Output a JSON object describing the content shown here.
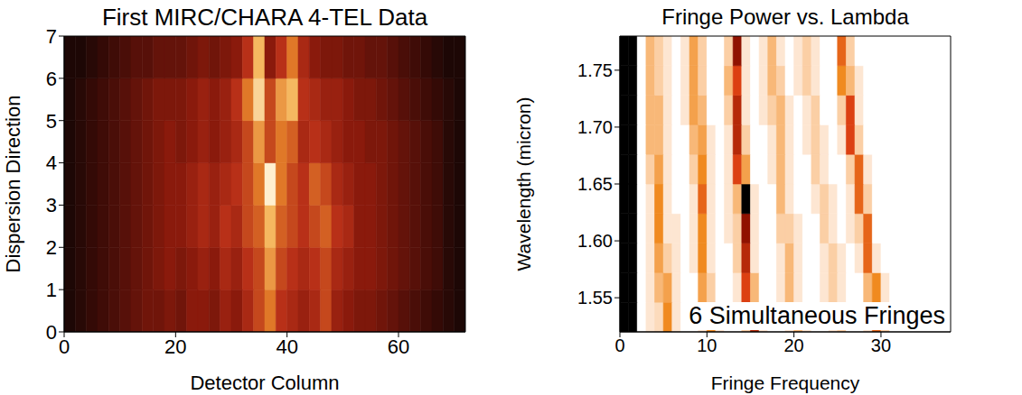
{
  "chart_data": [
    {
      "type": "heatmap",
      "title": "First MIRC/CHARA 4-TEL Data",
      "x_label": "Detector Column",
      "y_label": "Dispersion Direction",
      "xlim": [
        0,
        72
      ],
      "ylim": [
        0,
        7
      ],
      "xticks": [
        0,
        20,
        40,
        60
      ],
      "yticks": [
        0,
        1,
        2,
        3,
        4,
        5,
        6,
        7
      ],
      "color_range": [
        0,
        10
      ],
      "x_bins": [
        0,
        2,
        4,
        6,
        8,
        10,
        12,
        14,
        16,
        18,
        20,
        22,
        24,
        26,
        28,
        30,
        32,
        34,
        36,
        38,
        40,
        42,
        44,
        46,
        48,
        50,
        52,
        54,
        56,
        58,
        60,
        62,
        64,
        66,
        68,
        70,
        72
      ],
      "y_bins": [
        0,
        1,
        2,
        3,
        4,
        5,
        6,
        7
      ],
      "cells": [
        [
          0.5,
          1,
          1.5,
          2,
          2.5,
          3,
          3.5,
          4,
          4,
          4.5,
          4,
          5,
          5,
          4.5,
          5.5,
          5,
          6,
          7,
          8,
          6.5,
          6,
          5.5,
          6,
          7,
          5.5,
          5,
          4.5,
          4.5,
          4,
          3.5,
          3,
          2.5,
          2,
          1.5,
          1,
          0.5
        ],
        [
          0.5,
          1,
          1.5,
          2,
          2.5,
          3,
          3.5,
          4,
          4.5,
          5,
          4.5,
          5,
          5.5,
          5,
          6,
          5.5,
          6.5,
          7,
          8.5,
          7,
          6.5,
          6,
          6.5,
          7,
          6,
          5.5,
          5,
          5,
          4.5,
          4,
          3.5,
          3,
          2.5,
          2,
          1,
          0.5
        ],
        [
          0.5,
          1,
          1.5,
          2,
          2.5,
          3,
          3.5,
          4,
          4.5,
          5,
          5,
          5.5,
          6,
          5.5,
          6.5,
          6,
          7,
          7.5,
          9,
          7.5,
          7,
          6.5,
          7,
          7.5,
          6.5,
          6,
          5,
          5,
          4.5,
          4,
          3.5,
          3,
          2.5,
          2,
          1,
          0.5
        ],
        [
          0.5,
          1,
          1.5,
          2,
          2.5,
          3,
          3.5,
          4,
          4.5,
          5,
          5,
          5.5,
          6,
          5.5,
          6,
          6.5,
          7,
          8,
          10,
          8,
          7,
          6.5,
          7.5,
          7,
          6,
          5.5,
          5,
          5,
          4.5,
          4,
          3.5,
          3,
          2.5,
          2,
          1,
          0.5
        ],
        [
          0.5,
          1,
          1.5,
          2,
          2.5,
          3,
          3.5,
          4,
          4.5,
          5,
          4.5,
          5,
          5.5,
          5,
          5.5,
          6,
          7,
          8.5,
          7,
          8,
          7.5,
          6,
          6.5,
          6,
          5.5,
          5,
          5,
          4.5,
          4.5,
          4,
          3.5,
          3,
          2.5,
          2,
          1,
          0.5
        ],
        [
          0.5,
          1,
          1.5,
          2,
          2.5,
          3,
          3.5,
          4,
          4.5,
          4.5,
          4.5,
          5,
          5.5,
          5,
          5.5,
          6.5,
          8,
          9.5,
          7,
          8.5,
          9,
          6.5,
          6,
          5.5,
          5.5,
          5,
          4.5,
          4.5,
          4,
          3.5,
          3,
          2.5,
          2,
          1.5,
          1,
          0.5
        ],
        [
          0.5,
          0.5,
          1,
          1.5,
          2,
          2.5,
          3,
          3,
          3.5,
          3.5,
          3.5,
          4,
          4.5,
          4,
          4.5,
          5,
          6.5,
          9,
          5,
          6.5,
          8,
          6,
          5,
          4.5,
          4.5,
          4,
          4,
          3.5,
          3.5,
          3,
          2.5,
          2,
          1.5,
          1,
          0.5,
          0.5
        ]
      ]
    },
    {
      "type": "heatmap",
      "title": "Fringe Power vs. Lambda",
      "x_label": "Fringe Frequency",
      "y_label": "Wavelength (micron)",
      "annotation": "6 Simultaneous Fringes",
      "xlim": [
        0,
        38
      ],
      "ylim": [
        1.52,
        1.78
      ],
      "xticks": [
        0,
        10,
        20,
        30
      ],
      "yticks": [
        1.55,
        {
          "value": 1.6,
          "label": "1.60"
        },
        1.65,
        {
          "value": 1.7,
          "label": "1.70"
        },
        1.75
      ],
      "color_range": [
        0,
        10
      ],
      "x_bins": [
        0,
        1,
        2,
        3,
        4,
        5,
        6,
        7,
        8,
        9,
        10,
        11,
        12,
        13,
        14,
        15,
        16,
        17,
        18,
        19,
        20,
        21,
        22,
        23,
        24,
        25,
        26,
        27,
        28,
        29,
        30,
        31,
        32,
        33,
        34,
        35,
        36,
        37,
        38
      ],
      "y_bins": [
        1.52,
        1.546,
        1.572,
        1.598,
        1.624,
        1.65,
        1.676,
        1.702,
        1.728,
        1.754,
        1.78
      ],
      "cells": [
        [
          10,
          10,
          0,
          1,
          1.5,
          5,
          1,
          0,
          0,
          1,
          5,
          1,
          0,
          0,
          2,
          8,
          1,
          0,
          0,
          1,
          3,
          1,
          0,
          0,
          1,
          2,
          0,
          0,
          1,
          6,
          2,
          0,
          0,
          0,
          0,
          0,
          0,
          0
        ],
        [
          10,
          10,
          0,
          1,
          3,
          4,
          1,
          0,
          0,
          4,
          2,
          0,
          0,
          1,
          7,
          3,
          0,
          0,
          1,
          3,
          1,
          0,
          0,
          1,
          2,
          1,
          0,
          0,
          3,
          5,
          1,
          0,
          0,
          0,
          0,
          0,
          0,
          0
        ],
        [
          10,
          10,
          0,
          1,
          4,
          2,
          1,
          0,
          1,
          5,
          1,
          0,
          0,
          2,
          8,
          1,
          0,
          0,
          1,
          3,
          1,
          0,
          0,
          1,
          2,
          1,
          0,
          1,
          6,
          1,
          0,
          0,
          0,
          0,
          0,
          0,
          0,
          0
        ],
        [
          10,
          10,
          0,
          1,
          5,
          1,
          1,
          0,
          1,
          5,
          1,
          0,
          1,
          2,
          9,
          1,
          0,
          0,
          2,
          2,
          1,
          0,
          0,
          2,
          1,
          0,
          1,
          2,
          6,
          0,
          0,
          0,
          0,
          0,
          0,
          0,
          0,
          0
        ],
        [
          10,
          10,
          0,
          1,
          5,
          1,
          0,
          0,
          1,
          6,
          1,
          0,
          1,
          3,
          10,
          1,
          0,
          0,
          3,
          1,
          0,
          0,
          1,
          2,
          1,
          0,
          1,
          6,
          2,
          0,
          0,
          0,
          0,
          0,
          0,
          0,
          0,
          0
        ],
        [
          10,
          10,
          0,
          2,
          4,
          1,
          0,
          0,
          2,
          5,
          1,
          0,
          1,
          7,
          4,
          0,
          0,
          1,
          3,
          1,
          0,
          0,
          2,
          1,
          0,
          0,
          2,
          6,
          1,
          0,
          0,
          0,
          0,
          0,
          0,
          0,
          0,
          0
        ],
        [
          10,
          10,
          0,
          3,
          3,
          1,
          0,
          0,
          3,
          4,
          1,
          0,
          1,
          8,
          2,
          0,
          0,
          1,
          3,
          1,
          0,
          1,
          2,
          1,
          0,
          1,
          7,
          2,
          0,
          0,
          0,
          0,
          0,
          0,
          0,
          0,
          0,
          0
        ],
        [
          10,
          10,
          0,
          3,
          3,
          1,
          0,
          1,
          4,
          3,
          0,
          0,
          2,
          8,
          1,
          0,
          1,
          2,
          3,
          1,
          0,
          1,
          2,
          0,
          0,
          2,
          7,
          1,
          0,
          0,
          0,
          0,
          0,
          0,
          0,
          0,
          0,
          0
        ],
        [
          10,
          10,
          0,
          3,
          2,
          1,
          0,
          1,
          4,
          2,
          0,
          0,
          3,
          7,
          1,
          0,
          1,
          3,
          2,
          0,
          1,
          2,
          1,
          0,
          0,
          5,
          3,
          1,
          0,
          0,
          0,
          0,
          0,
          0,
          0,
          0,
          0,
          0
        ],
        [
          10,
          10,
          0,
          3,
          2,
          1,
          0,
          1,
          4,
          2,
          0,
          0,
          2,
          9,
          1,
          0,
          1,
          3,
          1,
          0,
          1,
          2,
          1,
          0,
          0,
          6,
          2,
          0,
          0,
          0,
          0,
          0,
          0,
          0,
          0,
          0,
          0,
          0
        ]
      ]
    }
  ]
}
